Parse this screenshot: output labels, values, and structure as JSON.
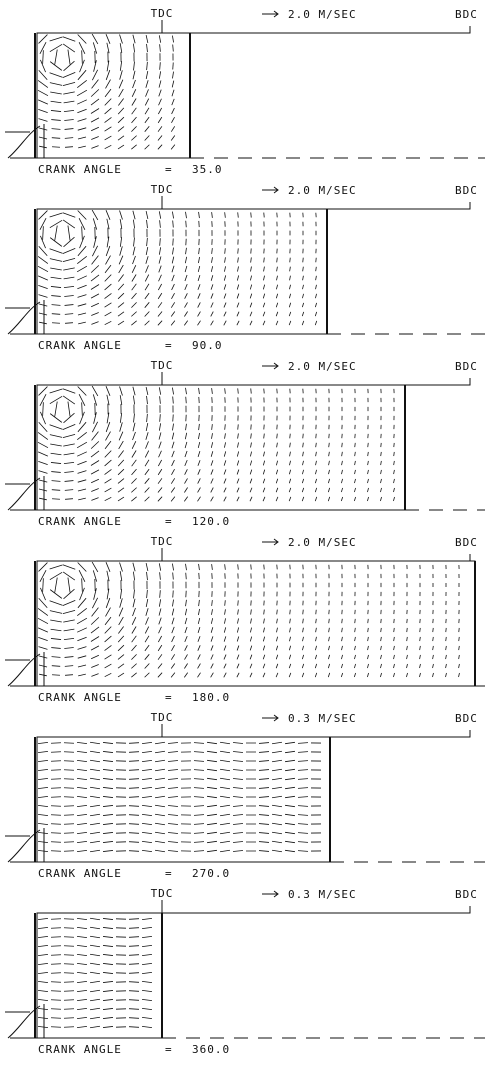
{
  "panels": [
    {
      "tdc": "TDC",
      "scale": "2.0 M/SEC",
      "bdc": "BDC",
      "crank_label": "CRANK ANGLE",
      "equals": "=",
      "crank_angle": "35.0"
    },
    {
      "tdc": "TDC",
      "scale": "2.0 M/SEC",
      "bdc": "BDC",
      "crank_label": "CRANK ANGLE",
      "equals": "=",
      "crank_angle": "90.0"
    },
    {
      "tdc": "TDC",
      "scale": "2.0 M/SEC",
      "bdc": "BDC",
      "crank_label": "CRANK ANGLE",
      "equals": "=",
      "crank_angle": "120.0"
    },
    {
      "tdc": "TDC",
      "scale": "2.0 M/SEC",
      "bdc": "BDC",
      "crank_label": "CRANK ANGLE",
      "equals": "=",
      "crank_angle": "180.0"
    },
    {
      "tdc": "TDC",
      "scale": "0.3 M/SEC",
      "bdc": "BDC",
      "crank_label": "CRANK ANGLE",
      "equals": "=",
      "crank_angle": "270.0"
    },
    {
      "tdc": "TDC",
      "scale": "0.3 M/SEC",
      "bdc": "BDC",
      "crank_label": "CRANK ANGLE",
      "equals": "=",
      "crank_angle": "360.0"
    }
  ]
}
